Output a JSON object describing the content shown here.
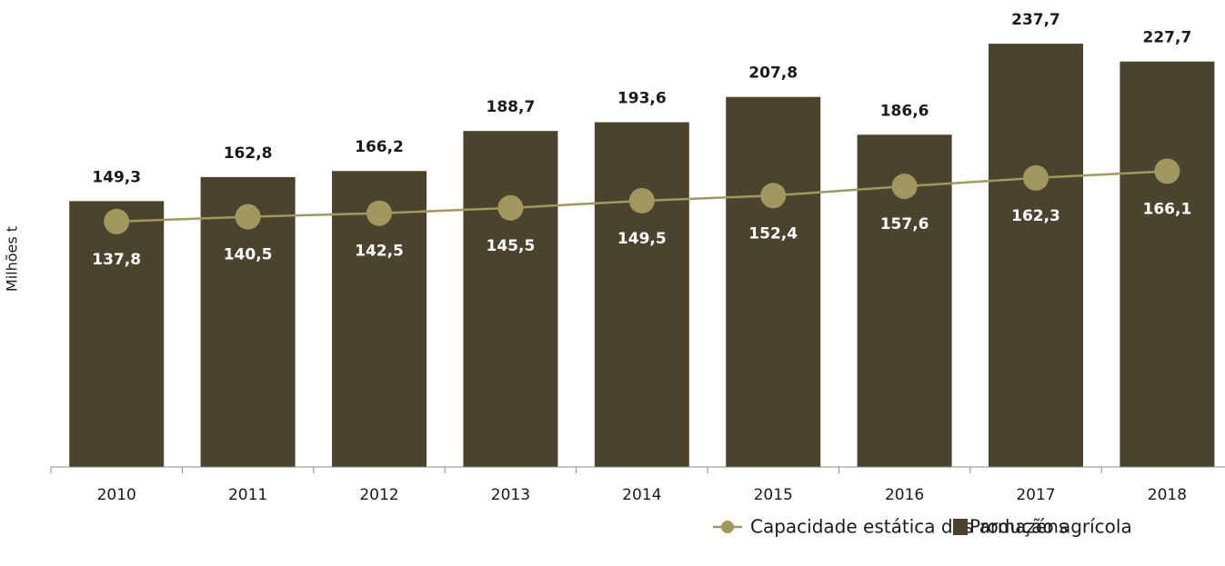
{
  "chart_data": {
    "type": "combo",
    "y_label": "Milhões t",
    "categories": [
      "2010",
      "2011",
      "2012",
      "2013",
      "2014",
      "2015",
      "2016",
      "2017",
      "2018"
    ],
    "ylim": [
      0,
      250
    ],
    "series": [
      {
        "name": "Produção agrícola",
        "type": "bar",
        "color": "#4b432e",
        "values": [
          149.3,
          162.8,
          166.2,
          188.7,
          193.6,
          207.8,
          186.6,
          237.7,
          227.7
        ],
        "value_labels": [
          "149,3",
          "162,8",
          "166,2",
          "188,7",
          "193,6",
          "207,8",
          "186,6",
          "237,7",
          "227,7"
        ]
      },
      {
        "name": "Capacidade estática dos armazéns",
        "type": "line",
        "color": "#a0985f",
        "values": [
          137.8,
          140.5,
          142.5,
          145.5,
          149.5,
          152.4,
          157.6,
          162.3,
          166.1
        ],
        "value_labels": [
          "137,8",
          "140,5",
          "142,5",
          "145,5",
          "149,5",
          "152,4",
          "157,6",
          "162,3",
          "166,1"
        ]
      }
    ]
  }
}
